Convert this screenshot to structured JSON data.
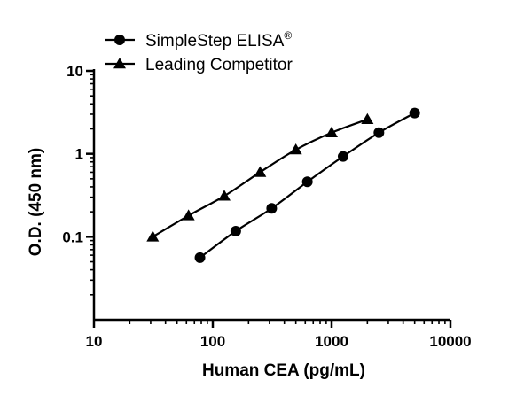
{
  "chart_data": {
    "type": "line",
    "title": "",
    "xlabel": "Human CEA (pg/mL)",
    "ylabel": "O.D. (450 nm)",
    "xscale": "log",
    "yscale": "log",
    "xlim": [
      10,
      10000
    ],
    "ylim": [
      0.01,
      10
    ],
    "x_ticks": [
      10,
      100,
      1000,
      10000
    ],
    "x_tick_labels": [
      "10",
      "100",
      "1000",
      "10000"
    ],
    "y_ticks": [
      0.1,
      1,
      10
    ],
    "y_tick_labels": [
      "0.1",
      "1",
      "10"
    ],
    "grid": false,
    "legend_position": "top-left",
    "series": [
      {
        "name": "SimpleStep ELISA",
        "name_superscript": "®",
        "marker": "circle",
        "color": "#000000",
        "x": [
          78,
          156,
          313,
          625,
          1250,
          2500,
          5000
        ],
        "y": [
          0.056,
          0.117,
          0.22,
          0.46,
          0.93,
          1.8,
          3.1
        ]
      },
      {
        "name": "Leading Competitor",
        "marker": "triangle",
        "color": "#000000",
        "x": [
          31.25,
          62.5,
          125,
          250,
          500,
          1000,
          2000
        ],
        "y": [
          0.1,
          0.18,
          0.31,
          0.6,
          1.12,
          1.8,
          2.6
        ]
      }
    ]
  }
}
